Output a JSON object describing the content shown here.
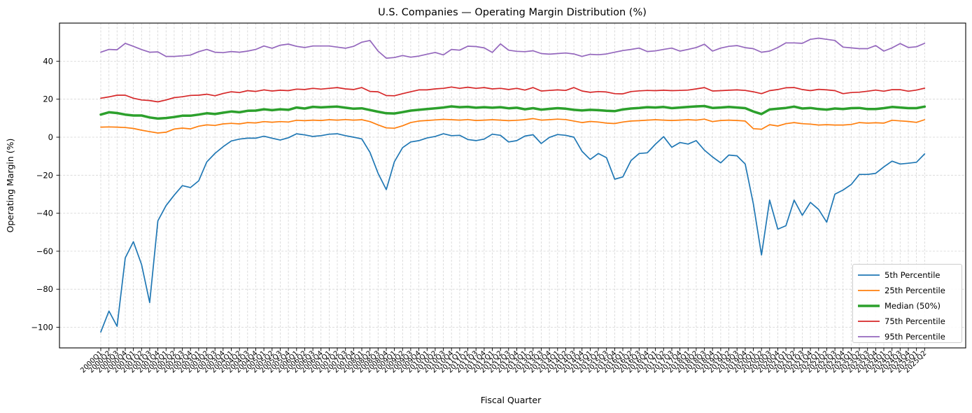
{
  "chart_data": {
    "type": "line",
    "title": "U.S. Companies — Operating Margin Distribution (%)",
    "xlabel": "Fiscal Quarter",
    "ylabel": "Operating Margin (%)",
    "grid": true,
    "legend_position": "lower right",
    "ylim": [
      -110.9,
      59.9
    ],
    "yticks": [
      40,
      20,
      0,
      -20,
      -40,
      -60,
      -80,
      -100
    ],
    "categories": [
      "2000Q1",
      "2000Q2",
      "2000Q3",
      "2000Q4",
      "2001Q1",
      "2001Q2",
      "2001Q3",
      "2001Q4",
      "2002Q1",
      "2002Q2",
      "2002Q3",
      "2002Q4",
      "2003Q1",
      "2003Q2",
      "2003Q3",
      "2003Q4",
      "2004Q1",
      "2004Q2",
      "2004Q3",
      "2004Q4",
      "2005Q1",
      "2005Q2",
      "2005Q3",
      "2005Q4",
      "2006Q1",
      "2006Q2",
      "2006Q3",
      "2006Q4",
      "2007Q1",
      "2007Q2",
      "2007Q3",
      "2007Q4",
      "2008Q1",
      "2008Q2",
      "2008Q3",
      "2008Q4",
      "2009Q1",
      "2009Q2",
      "2009Q3",
      "2009Q4",
      "2010Q1",
      "2010Q2",
      "2010Q3",
      "2010Q4",
      "2011Q1",
      "2011Q2",
      "2011Q3",
      "2011Q4",
      "2012Q1",
      "2012Q2",
      "2012Q3",
      "2012Q4",
      "2013Q1",
      "2013Q2",
      "2013Q3",
      "2013Q4",
      "2014Q1",
      "2014Q2",
      "2014Q3",
      "2014Q4",
      "2015Q1",
      "2015Q2",
      "2015Q3",
      "2015Q4",
      "2016Q1",
      "2016Q2",
      "2016Q3",
      "2016Q4",
      "2017Q1",
      "2017Q2",
      "2017Q3",
      "2017Q4",
      "2018Q1",
      "2018Q2",
      "2018Q3",
      "2018Q4",
      "2019Q1",
      "2019Q2",
      "2019Q3",
      "2019Q4",
      "2020Q1",
      "2020Q2",
      "2020Q3",
      "2020Q4",
      "2021Q1",
      "2021Q2",
      "2021Q3",
      "2021Q4",
      "2022Q1",
      "2022Q2",
      "2022Q3",
      "2022Q4",
      "2023Q1",
      "2023Q2",
      "2023Q3",
      "2023Q4",
      "2024Q1",
      "2024Q2",
      "2024Q3",
      "2024Q4",
      "2025Q1",
      "2025Q2"
    ],
    "series": [
      {
        "name": "5th Percentile",
        "color": "#1f77b4",
        "linewidth": 1.7,
        "values": [
          -102.5,
          -91.5,
          -99.5,
          -63.5,
          -55,
          -67,
          -87,
          -44,
          -36,
          -30.5,
          -25.5,
          -26.5,
          -23,
          -13,
          -8.5,
          -5,
          -2,
          -1,
          -0.5,
          -0.5,
          0.5,
          -0.5,
          -1.5,
          -0.3,
          1.8,
          1.2,
          0.4,
          0.8,
          1.6,
          1.8,
          0.8,
          0,
          -0.9,
          -8,
          -19,
          -27.6,
          -12.9,
          -5.5,
          -2.5,
          -1.8,
          -0.4,
          0.4,
          1.8,
          0.8,
          1,
          -1.2,
          -1.8,
          -1,
          1.6,
          1,
          -2.5,
          -1.8,
          0.6,
          1.3,
          -3.3,
          -0.1,
          1.4,
          1,
          0,
          -7.4,
          -11.7,
          -8.6,
          -10.8,
          -22.1,
          -20.9,
          -12.3,
          -8.6,
          -8.2,
          -3.7,
          0.3,
          -5.3,
          -2.8,
          -3.6,
          -1.8,
          -6.8,
          -10.4,
          -13.5,
          -9.4,
          -9.8,
          -14.1,
          -35,
          -62,
          -33.1,
          -48.4,
          -46.6,
          -33.1,
          -41.1,
          -34.3,
          -38,
          -44.7,
          -30,
          -27.8,
          -24.9,
          -19.6,
          -19.6,
          -19,
          -15.6,
          -12.6,
          -14.1,
          -13.7,
          -13.2,
          -8.8
        ]
      },
      {
        "name": "25th Percentile",
        "color": "#ff7f0e",
        "linewidth": 1.7,
        "values": [
          5.3,
          5.4,
          5.3,
          5.1,
          4.6,
          3.7,
          2.9,
          2.2,
          2.6,
          4.3,
          4.8,
          4.4,
          5.8,
          6.5,
          6.2,
          7.0,
          7.3,
          7.0,
          7.7,
          7.5,
          8.2,
          7.9,
          8.2,
          8.0,
          8.9,
          8.7,
          9.0,
          8.8,
          9.2,
          9.0,
          9.3,
          9.0,
          9.2,
          8.2,
          6.5,
          4.9,
          4.7,
          6.0,
          7.7,
          8.5,
          8.8,
          9.1,
          9.4,
          9.2,
          9.0,
          9.3,
          8.8,
          9.0,
          9.2,
          9.0,
          8.7,
          8.9,
          9.2,
          9.8,
          9.0,
          9.2,
          9.5,
          9.3,
          8.5,
          7.7,
          8.3,
          8.0,
          7.4,
          7.2,
          8.0,
          8.5,
          8.7,
          9.0,
          9.2,
          9.0,
          8.8,
          9.0,
          9.2,
          9.0,
          9.5,
          8.2,
          8.8,
          9.0,
          8.8,
          8.5,
          4.5,
          4.2,
          6.6,
          5.9,
          7.1,
          7.7,
          7.1,
          6.9,
          6.4,
          6.6,
          6.4,
          6.4,
          6.7,
          7.7,
          7.4,
          7.6,
          7.4,
          8.9,
          8.6,
          8.3,
          7.8,
          9.2
        ]
      },
      {
        "name": "Median (50%)",
        "color": "#2ca02c",
        "linewidth": 3.5,
        "values": [
          11.9,
          13.1,
          12.7,
          11.9,
          11.4,
          11.4,
          10.4,
          9.8,
          10.1,
          10.6,
          11.3,
          11.3,
          11.9,
          12.6,
          12.2,
          12.9,
          13.5,
          13.1,
          13.9,
          14.0,
          14.7,
          14.2,
          14.7,
          14.4,
          15.6,
          15.1,
          16.0,
          15.7,
          15.9,
          16.1,
          15.5,
          15.0,
          15.2,
          14.3,
          13.4,
          12.6,
          12.5,
          13.2,
          14.0,
          14.4,
          14.8,
          15.2,
          15.6,
          16.2,
          15.8,
          16.0,
          15.5,
          15.8,
          15.5,
          15.8,
          15.2,
          15.5,
          14.7,
          15.3,
          14.5,
          14.9,
          15.3,
          15.0,
          14.4,
          14.1,
          14.4,
          14.2,
          13.9,
          13.7,
          14.6,
          15.1,
          15.4,
          15.8,
          15.6,
          15.9,
          15.3,
          15.6,
          15.9,
          16.2,
          16.4,
          15.4,
          15.6,
          15.9,
          15.6,
          15.3,
          13.5,
          12.2,
          14.6,
          15.0,
          15.4,
          16.1,
          15.1,
          15.4,
          14.8,
          14.5,
          15.1,
          14.8,
          15.3,
          15.4,
          14.8,
          14.8,
          15.3,
          15.9,
          15.6,
          15.3,
          15.3,
          16.1
        ]
      },
      {
        "name": "75th Percentile",
        "color": "#d62728",
        "linewidth": 1.7,
        "values": [
          20.5,
          21.2,
          22.1,
          22.1,
          20.5,
          19.6,
          19.3,
          18.6,
          19.6,
          20.8,
          21.3,
          22.0,
          22.1,
          22.6,
          21.8,
          23.0,
          23.9,
          23.5,
          24.5,
          24.1,
          24.9,
          24.3,
          24.7,
          24.5,
          25.3,
          25.1,
          25.7,
          25.3,
          25.7,
          26.1,
          25.4,
          25.1,
          26.1,
          24.1,
          23.9,
          21.9,
          21.8,
          22.9,
          23.9,
          24.9,
          24.9,
          25.4,
          25.7,
          26.4,
          25.7,
          26.3,
          25.7,
          26.1,
          25.4,
          25.7,
          25.1,
          25.7,
          24.8,
          26.1,
          24.3,
          24.6,
          24.9,
          24.6,
          26.1,
          24.3,
          23.6,
          24.0,
          23.8,
          22.9,
          22.8,
          24.0,
          24.4,
          24.6,
          24.5,
          24.7,
          24.5,
          24.6,
          24.8,
          25.4,
          26.1,
          24.3,
          24.5,
          24.7,
          24.9,
          24.6,
          23.9,
          22.9,
          24.5,
          25.1,
          26.0,
          26.1,
          25.1,
          24.5,
          25.2,
          24.9,
          24.5,
          22.9,
          23.5,
          23.7,
          24.2,
          24.8,
          24.2,
          25.0,
          25.0,
          24.2,
          24.8,
          25.8
        ]
      },
      {
        "name": "95th Percentile",
        "color": "#9467bd",
        "linewidth": 1.7,
        "values": [
          44.7,
          46.2,
          46.0,
          49.4,
          47.8,
          46.1,
          44.7,
          44.9,
          42.5,
          42.5,
          42.8,
          43.2,
          45.0,
          46.2,
          44.7,
          44.5,
          45.1,
          44.7,
          45.3,
          46.2,
          48.0,
          46.8,
          48.4,
          49.0,
          47.8,
          47.2,
          48.0,
          48.0,
          48.0,
          47.4,
          46.8,
          47.8,
          50.0,
          50.9,
          45.3,
          41.6,
          41.9,
          43.0,
          42.1,
          42.7,
          43.7,
          44.6,
          43.3,
          46.2,
          45.8,
          47.9,
          47.7,
          47.0,
          44.6,
          49.1,
          45.8,
          45.2,
          45.0,
          45.5,
          44.0,
          43.7,
          44.0,
          44.3,
          43.8,
          42.5,
          43.6,
          43.4,
          43.8,
          44.7,
          45.6,
          46.2,
          46.9,
          45.1,
          45.4,
          46.2,
          46.9,
          45.3,
          46.2,
          47.2,
          48.9,
          45.3,
          46.9,
          47.8,
          48.2,
          47.1,
          46.6,
          44.7,
          45.3,
          47.2,
          49.6,
          49.6,
          49.4,
          51.5,
          52.1,
          51.5,
          50.9,
          47.4,
          47.0,
          46.6,
          46.6,
          48.2,
          45.3,
          47.0,
          49.3,
          47.2,
          47.6,
          49.4
        ]
      }
    ]
  },
  "style": {
    "grid_color": "#cccccc",
    "axis_color": "#000000",
    "background": "#ffffff",
    "legend_border": "#cccccc",
    "legend_fill": "#ffffff"
  }
}
